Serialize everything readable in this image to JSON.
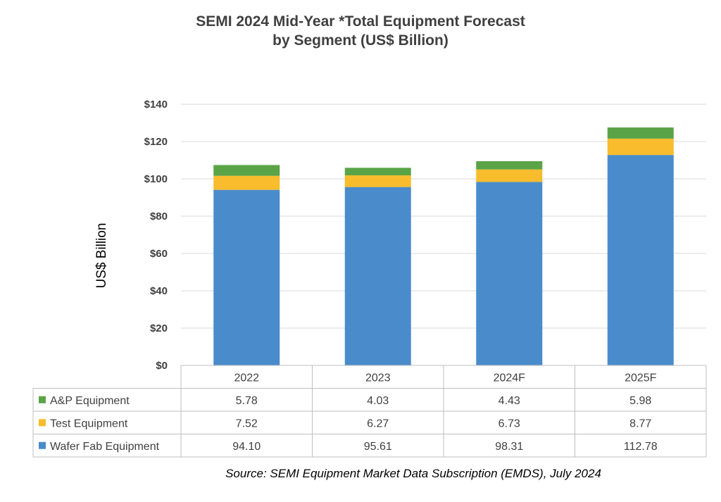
{
  "chart_data": {
    "type": "bar",
    "stacked": true,
    "title": "SEMI 2024 Mid-Year *Total Equipment Forecast",
    "subtitle": "by Segment (US$ Billion)",
    "ylabel": "US$ Billion",
    "ylim": [
      0,
      140
    ],
    "yticks": [
      0,
      20,
      40,
      60,
      80,
      100,
      120,
      140
    ],
    "ytick_labels": [
      "$0",
      "$20",
      "$40",
      "$60",
      "$80",
      "$100",
      "$120",
      "$140"
    ],
    "grid": true,
    "categories": [
      "2022",
      "2023",
      "2024F",
      "2025F"
    ],
    "series": [
      {
        "name": "Wafer Fab Equipment",
        "color": "#4a8ccb",
        "values": [
          94.1,
          95.61,
          98.31,
          112.78
        ],
        "labels": [
          "94.10",
          "95.61",
          "98.31",
          "112.78"
        ]
      },
      {
        "name": "Test Equipment",
        "color": "#f8bc2c",
        "values": [
          7.52,
          6.27,
          6.73,
          8.77
        ],
        "labels": [
          "7.52",
          "6.27",
          "6.73",
          "8.77"
        ]
      },
      {
        "name": "A&P Equipment",
        "color": "#5aa447",
        "values": [
          5.78,
          4.03,
          4.43,
          5.98
        ],
        "labels": [
          "5.78",
          "4.03",
          "4.43",
          "5.98"
        ]
      }
    ],
    "table_row_order": [
      "A&P Equipment",
      "Test Equipment",
      "Wafer Fab Equipment"
    ],
    "source": "Source: SEMI Equipment Market Data Subscription (EMDS), July 2024"
  }
}
